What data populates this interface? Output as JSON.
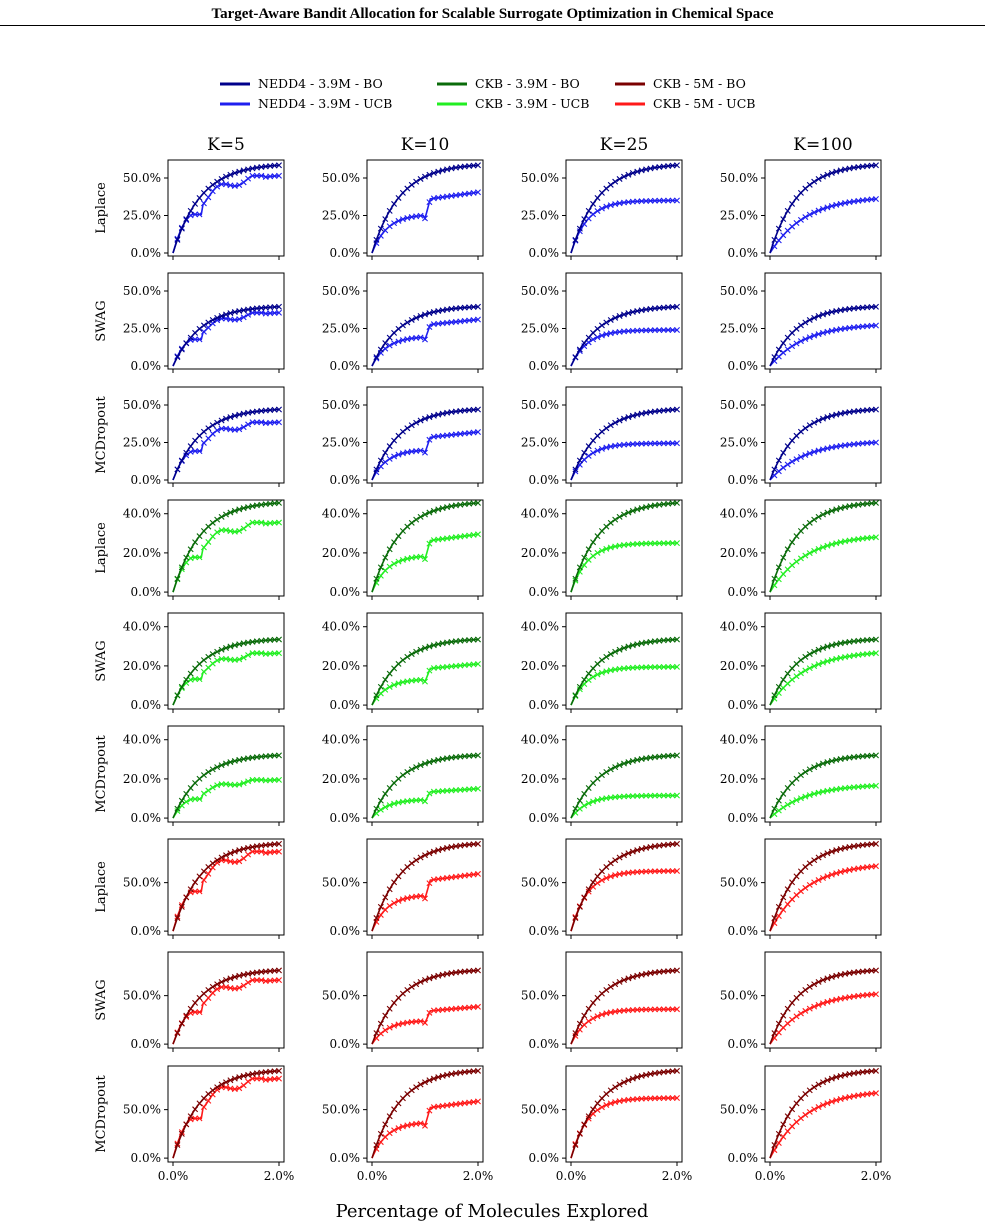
{
  "header": {
    "title": "Target-Aware Bandit Allocation for Scalable Surrogate Optimization in Chemical Space"
  },
  "colors": {
    "nedd4_bo": "#00008b",
    "nedd4_ucb": "#1f1fef",
    "ckb39_bo": "#0a6b0a",
    "ckb39_ucb": "#22ee22",
    "ckb5_bo": "#7a0000",
    "ckb5_ucb": "#ff1a1a"
  },
  "legend": [
    {
      "label": "NEDD4 - 3.9M - BO",
      "color": "#00008b"
    },
    {
      "label": "NEDD4 - 3.9M - UCB",
      "color": "#1f1fef"
    },
    {
      "label": "CKB - 3.9M - BO",
      "color": "#0a6b0a"
    },
    {
      "label": "CKB - 3.9M - UCB",
      "color": "#22ee22"
    },
    {
      "label": "CKB - 5M - BO",
      "color": "#7a0000"
    },
    {
      "label": "CKB - 5M - UCB",
      "color": "#ff1a1a"
    }
  ],
  "chart_data": {
    "type": "line",
    "xlabel": "Percentage of Molecules Explored",
    "xlim": [
      0,
      2
    ],
    "xticks": [
      "0.0%",
      "2.0%"
    ],
    "columns": [
      "K=5",
      "K=10",
      "K=25",
      "K=100"
    ],
    "rows": [
      {
        "label": "Laplace",
        "group": "nedd4",
        "yticks": [
          0,
          25,
          50
        ],
        "ytick_labels": [
          "0.0%",
          "25.0%",
          "50.0%"
        ],
        "ylim": [
          -2,
          62
        ],
        "bo_final": [
          58.5,
          58.5,
          58.5,
          58.5
        ],
        "ucb_final": [
          51.5,
          40.5,
          35,
          36
        ]
      },
      {
        "label": "SWAG",
        "group": "nedd4",
        "yticks": [
          0,
          25,
          50
        ],
        "ytick_labels": [
          "0.0%",
          "25.0%",
          "50.0%"
        ],
        "ylim": [
          -2,
          62
        ],
        "bo_final": [
          39.5,
          39.5,
          39.5,
          39.5
        ],
        "ucb_final": [
          35.5,
          31,
          24,
          27
        ]
      },
      {
        "label": "MCDropout",
        "group": "nedd4",
        "yticks": [
          0,
          25,
          50
        ],
        "ytick_labels": [
          "0.0%",
          "25.0%",
          "50.0%"
        ],
        "ylim": [
          -2,
          62
        ],
        "bo_final": [
          47,
          47,
          47,
          47
        ],
        "ucb_final": [
          38.5,
          32,
          24.5,
          25
        ]
      },
      {
        "label": "Laplace",
        "group": "ckb39",
        "yticks": [
          0,
          20,
          40
        ],
        "ytick_labels": [
          "0.0%",
          "20.0%",
          "40.0%"
        ],
        "ylim": [
          -2,
          47
        ],
        "bo_final": [
          45.5,
          45.5,
          45.5,
          45.5
        ],
        "ucb_final": [
          35.5,
          29.5,
          25,
          28
        ]
      },
      {
        "label": "SWAG",
        "group": "ckb39",
        "yticks": [
          0,
          20,
          40
        ],
        "ytick_labels": [
          "0.0%",
          "20.0%",
          "40.0%"
        ],
        "ylim": [
          -2,
          47
        ],
        "bo_final": [
          33.5,
          33.5,
          33.5,
          33.5
        ],
        "ucb_final": [
          26.5,
          21,
          19.5,
          26.5
        ]
      },
      {
        "label": "MCDropout",
        "group": "ckb39",
        "yticks": [
          0,
          20,
          40
        ],
        "ytick_labels": [
          "0.0%",
          "20.0%",
          "40.0%"
        ],
        "ylim": [
          -2,
          47
        ],
        "bo_final": [
          32,
          32,
          32,
          32
        ],
        "ucb_final": [
          19.5,
          15,
          11.5,
          16.5
        ]
      },
      {
        "label": "Laplace",
        "group": "ckb5",
        "yticks": [
          0,
          50
        ],
        "ytick_labels": [
          "0.0%",
          "50.0%"
        ],
        "ylim": [
          -4,
          95
        ],
        "bo_final": [
          90,
          90,
          90,
          90
        ],
        "ucb_final": [
          82,
          59,
          62,
          67
        ]
      },
      {
        "label": "SWAG",
        "group": "ckb5",
        "yticks": [
          0,
          50
        ],
        "ytick_labels": [
          "0.0%",
          "50.0%"
        ],
        "ylim": [
          -4,
          95
        ],
        "bo_final": [
          76,
          76,
          76,
          76
        ],
        "ucb_final": [
          66,
          38.5,
          36,
          51.5
        ]
      },
      {
        "label": "MCDropout",
        "group": "ckb5",
        "yticks": [
          0,
          50
        ],
        "ytick_labels": [
          "0.0%",
          "50.0%"
        ],
        "ylim": [
          -4,
          95
        ],
        "bo_final": [
          90,
          90,
          90,
          90
        ],
        "ucb_final": [
          82,
          58.5,
          62,
          67
        ]
      }
    ]
  }
}
